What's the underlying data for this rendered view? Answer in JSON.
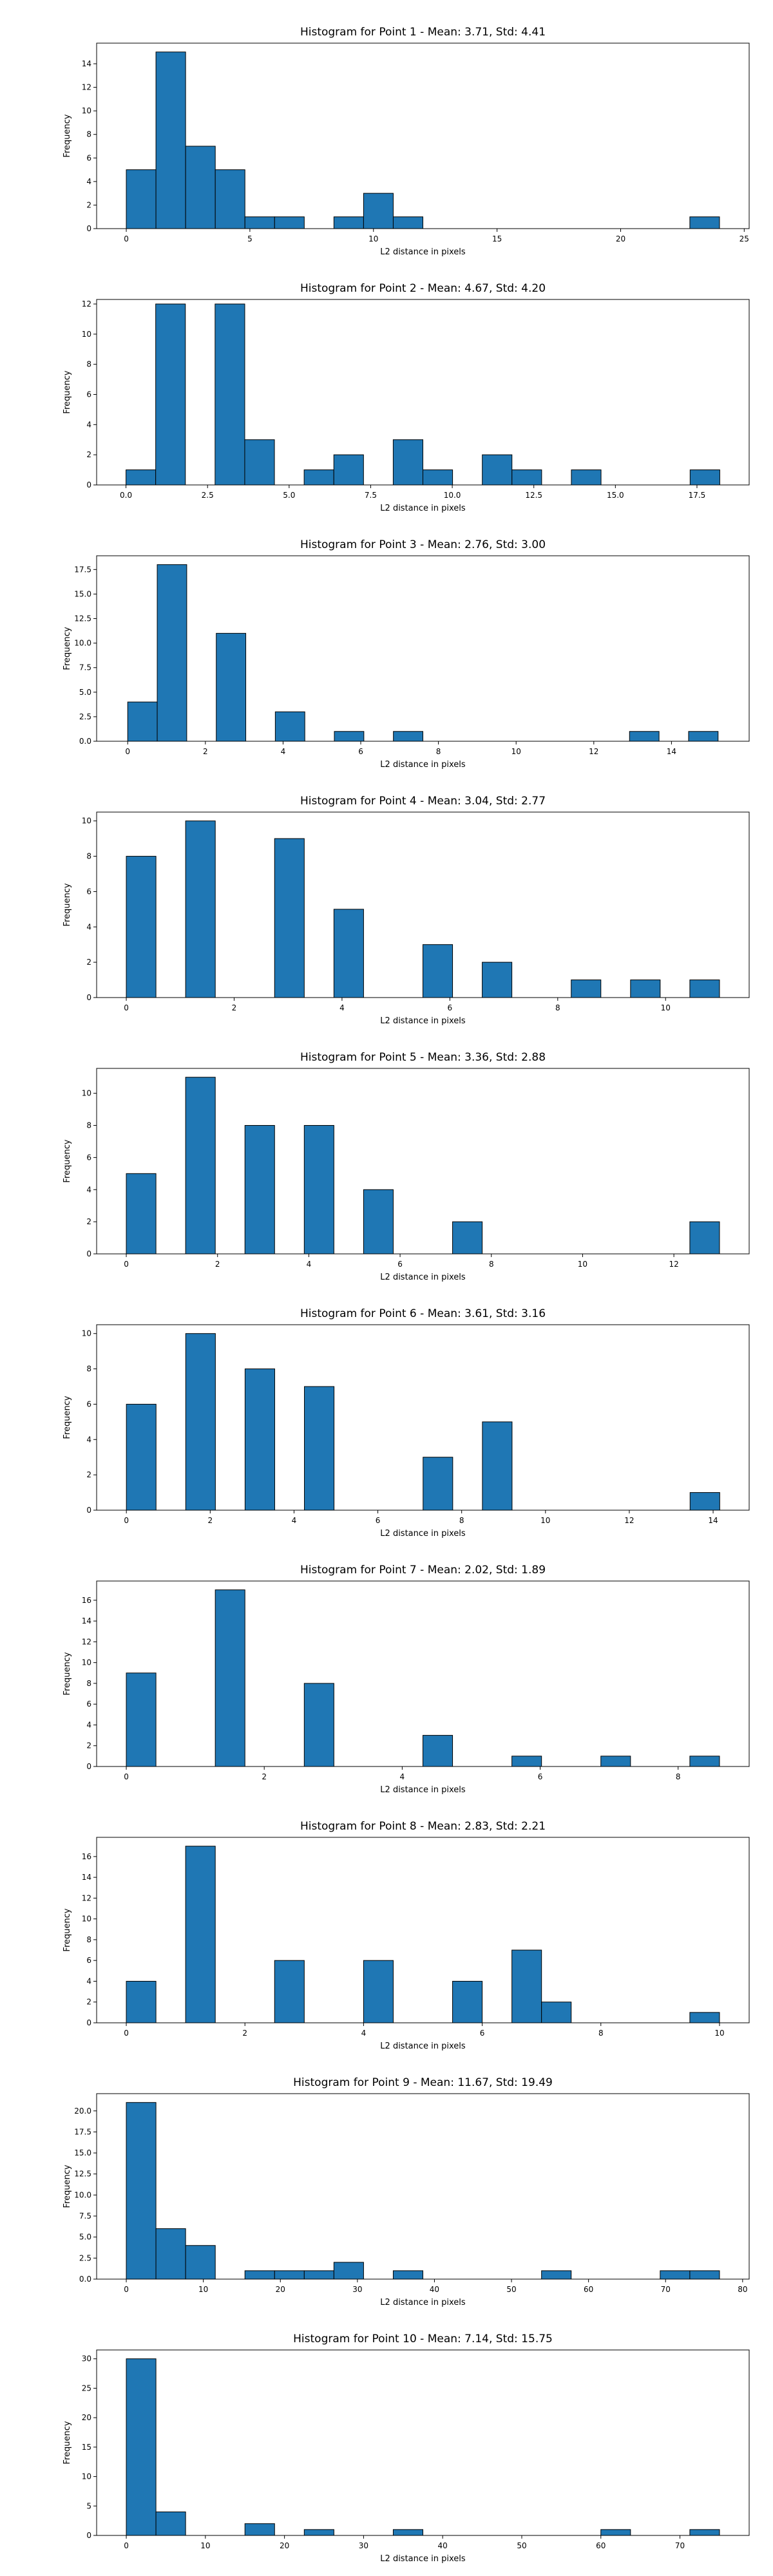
{
  "chart_data": [
    {
      "type": "bar",
      "title": "Histogram for Point 1 - Mean: 3.71, Std: 4.41",
      "xlabel": "L2 distance in pixels",
      "ylabel": "Frequency",
      "xlim": [
        -1.2,
        25.2
      ],
      "ylim": [
        0,
        15.75
      ],
      "xticks": [
        0,
        5,
        10,
        15,
        20,
        25
      ],
      "yticks": [
        0,
        2,
        4,
        6,
        8,
        10,
        12,
        14
      ],
      "bins": {
        "left": [
          0,
          1.2,
          2.4,
          3.6,
          4.8,
          6.0,
          7.2,
          8.4,
          9.6,
          10.8,
          12.0,
          13.2,
          14.4,
          15.6,
          16.8,
          18.0,
          19.2,
          20.4,
          21.6,
          22.8
        ],
        "width": 1.2,
        "counts": [
          5,
          15,
          7,
          5,
          1,
          1,
          0,
          1,
          3,
          1,
          0,
          0,
          0,
          0,
          0,
          0,
          0,
          0,
          0,
          1
        ]
      }
    },
    {
      "type": "bar",
      "title": "Histogram for Point 2 - Mean: 4.67, Std: 4.20",
      "xlabel": "L2 distance in pixels",
      "ylabel": "Frequency",
      "xlim": [
        -0.9,
        19.1
      ],
      "ylim": [
        0,
        12.3
      ],
      "xticks": [
        0.0,
        2.5,
        5.0,
        7.5,
        10.0,
        12.5,
        15.0,
        17.5
      ],
      "yticks": [
        0,
        2,
        4,
        6,
        8,
        10,
        12
      ],
      "bins": {
        "left": [
          0,
          0.91,
          1.82,
          2.73,
          3.64,
          4.55,
          5.46,
          6.37,
          7.28,
          8.19,
          9.1,
          10.01,
          10.92,
          11.83,
          12.74,
          13.65,
          14.56,
          15.47,
          16.38,
          17.29
        ],
        "width": 0.91,
        "counts": [
          1,
          12,
          0,
          12,
          3,
          0,
          1,
          2,
          0,
          3,
          1,
          0,
          2,
          1,
          0,
          1,
          0,
          0,
          0,
          1
        ]
      }
    },
    {
      "type": "bar",
      "title": "Histogram for Point 3 - Mean: 2.76, Std: 3.00",
      "xlabel": "L2 distance in pixels",
      "ylabel": "Frequency",
      "xlim": [
        -0.8,
        16.0
      ],
      "ylim": [
        0,
        18.9
      ],
      "xticks": [
        0,
        2,
        4,
        6,
        8,
        10,
        12,
        14
      ],
      "yticks": [
        0.0,
        2.5,
        5.0,
        7.5,
        10.0,
        12.5,
        15.0,
        17.5
      ],
      "bins": {
        "left": [
          0,
          0.76,
          1.52,
          2.28,
          3.04,
          3.8,
          4.56,
          5.32,
          6.08,
          6.84,
          7.6,
          8.36,
          9.12,
          9.88,
          10.64,
          11.4,
          12.16,
          12.92,
          13.68,
          14.44
        ],
        "width": 0.76,
        "counts": [
          4,
          18,
          0,
          11,
          0,
          3,
          0,
          1,
          0,
          1,
          0,
          0,
          0,
          0,
          0,
          0,
          0,
          1,
          0,
          1
        ]
      }
    },
    {
      "type": "bar",
      "title": "Histogram for Point 4 - Mean: 3.04, Std: 2.77",
      "xlabel": "L2 distance in pixels",
      "ylabel": "Frequency",
      "xlim": [
        -0.55,
        11.55
      ],
      "ylim": [
        0,
        10.5
      ],
      "xticks": [
        0,
        2,
        4,
        6,
        8,
        10
      ],
      "yticks": [
        0,
        2,
        4,
        6,
        8,
        10
      ],
      "bins": {
        "left": [
          0,
          0.55,
          1.1,
          1.65,
          2.2,
          2.75,
          3.3,
          3.85,
          4.4,
          4.95,
          5.5,
          6.05,
          6.6,
          7.15,
          7.7,
          8.25,
          8.8,
          9.35,
          9.9,
          10.45
        ],
        "width": 0.55,
        "counts": [
          8,
          0,
          10,
          0,
          0,
          9,
          0,
          5,
          0,
          0,
          3,
          0,
          2,
          0,
          0,
          1,
          0,
          1,
          0,
          1
        ]
      }
    },
    {
      "type": "bar",
      "title": "Histogram for Point 5 - Mean: 3.36, Std: 2.88",
      "xlabel": "L2 distance in pixels",
      "ylabel": "Frequency",
      "xlim": [
        -0.65,
        13.65
      ],
      "ylim": [
        0,
        11.55
      ],
      "xticks": [
        0,
        2,
        4,
        6,
        8,
        10,
        12
      ],
      "yticks": [
        0,
        2,
        4,
        6,
        8,
        10
      ],
      "bins": {
        "left": [
          0,
          0.65,
          1.3,
          1.95,
          2.6,
          3.25,
          3.9,
          4.55,
          5.2,
          5.85,
          6.5,
          7.15,
          7.8,
          8.45,
          9.1,
          9.75,
          10.4,
          11.05,
          11.7,
          12.35
        ],
        "width": 0.65,
        "counts": [
          5,
          0,
          11,
          0,
          8,
          0,
          8,
          0,
          4,
          0,
          0,
          2,
          0,
          0,
          0,
          0,
          0,
          0,
          0,
          2
        ]
      }
    },
    {
      "type": "bar",
      "title": "Histogram for Point 6 - Mean: 3.61, Std: 3.16",
      "xlabel": "L2 distance in pixels",
      "ylabel": "Frequency",
      "xlim": [
        -0.71,
        14.86
      ],
      "ylim": [
        0,
        10.5
      ],
      "xticks": [
        0,
        2,
        4,
        6,
        8,
        10,
        12,
        14
      ],
      "yticks": [
        0,
        2,
        4,
        6,
        8,
        10
      ],
      "bins": {
        "left": [
          0,
          0.7079,
          1.4158,
          2.1237,
          2.8316,
          3.5395,
          4.2474,
          4.9553,
          5.6632,
          6.3711,
          7.079,
          7.7869,
          8.4948,
          9.2027,
          9.9106,
          10.6185,
          11.3264,
          12.0343,
          12.7422,
          13.4501
        ],
        "width": 0.7079,
        "counts": [
          6,
          0,
          10,
          0,
          8,
          0,
          7,
          0,
          0,
          0,
          3,
          0,
          5,
          0,
          0,
          0,
          0,
          0,
          0,
          1
        ]
      }
    },
    {
      "type": "bar",
      "title": "Histogram for Point 7 - Mean: 2.02, Std: 1.89",
      "xlabel": "L2 distance in pixels",
      "ylabel": "Frequency",
      "xlim": [
        -0.43,
        9.03
      ],
      "ylim": [
        0,
        17.85
      ],
      "xticks": [
        0,
        2,
        4,
        6,
        8
      ],
      "yticks": [
        0,
        2,
        4,
        6,
        8,
        10,
        12,
        14,
        16
      ],
      "bins": {
        "left": [
          0,
          0.43,
          0.86,
          1.29,
          1.72,
          2.15,
          2.58,
          3.01,
          3.44,
          3.87,
          4.3,
          4.73,
          5.16,
          5.59,
          6.02,
          6.45,
          6.88,
          7.31,
          7.74,
          8.17
        ],
        "width": 0.43,
        "counts": [
          9,
          0,
          0,
          17,
          0,
          0,
          8,
          0,
          0,
          0,
          3,
          0,
          0,
          1,
          0,
          0,
          1,
          0,
          0,
          1
        ]
      }
    },
    {
      "type": "bar",
      "title": "Histogram for Point 8 - Mean: 2.83, Std: 2.21",
      "xlabel": "L2 distance in pixels",
      "ylabel": "Frequency",
      "xlim": [
        -0.5,
        10.5
      ],
      "ylim": [
        0,
        17.85
      ],
      "xticks": [
        0,
        2,
        4,
        6,
        8,
        10
      ],
      "yticks": [
        0,
        2,
        4,
        6,
        8,
        10,
        12,
        14,
        16
      ],
      "bins": {
        "left": [
          0,
          0.5,
          1.0,
          1.5,
          2.0,
          2.5,
          3.0,
          3.5,
          4.0,
          4.5,
          5.0,
          5.5,
          6.0,
          6.5,
          7.0,
          7.5,
          8.0,
          8.5,
          9.0,
          9.5
        ],
        "width": 0.5,
        "counts": [
          4,
          0,
          17,
          0,
          0,
          6,
          0,
          0,
          6,
          0,
          0,
          4,
          0,
          7,
          2,
          0,
          0,
          0,
          0,
          1
        ]
      }
    },
    {
      "type": "bar",
      "title": "Histogram for Point 9 - Mean: 11.67, Std: 19.49",
      "xlabel": "L2 distance in pixels",
      "ylabel": "Frequency",
      "xlim": [
        -3.85,
        80.85
      ],
      "ylim": [
        0,
        22.05
      ],
      "xticks": [
        0,
        10,
        20,
        30,
        40,
        50,
        60,
        70,
        80
      ],
      "yticks": [
        0.0,
        2.5,
        5.0,
        7.5,
        10.0,
        12.5,
        15.0,
        17.5,
        20.0
      ],
      "bins": {
        "left": [
          0,
          3.85,
          7.7,
          11.55,
          15.4,
          19.25,
          23.1,
          26.95,
          30.8,
          34.65,
          38.5,
          42.35,
          46.2,
          50.05,
          53.9,
          57.75,
          61.6,
          65.45,
          69.3,
          73.15
        ],
        "width": 3.85,
        "counts": [
          21,
          6,
          4,
          0,
          1,
          1,
          1,
          2,
          0,
          1,
          0,
          0,
          0,
          0,
          1,
          0,
          0,
          0,
          1,
          1
        ]
      }
    },
    {
      "type": "bar",
      "title": "Histogram for Point 10 - Mean: 7.14, Std: 15.75",
      "xlabel": "L2 distance in pixels",
      "ylabel": "Frequency",
      "xlim": [
        -3.75,
        78.75
      ],
      "ylim": [
        0,
        31.5
      ],
      "xticks": [
        0,
        10,
        20,
        30,
        40,
        50,
        60,
        70
      ],
      "yticks": [
        0,
        5,
        10,
        15,
        20,
        25,
        30
      ],
      "bins": {
        "left": [
          0,
          3.75,
          7.5,
          11.25,
          15.0,
          18.75,
          22.5,
          26.25,
          30.0,
          33.75,
          37.5,
          41.25,
          45.0,
          48.75,
          52.5,
          56.25,
          60.0,
          63.75,
          67.5,
          71.25
        ],
        "width": 3.75,
        "counts": [
          30,
          4,
          0,
          0,
          2,
          0,
          1,
          0,
          0,
          1,
          0,
          0,
          0,
          0,
          0,
          0,
          1,
          0,
          0,
          1
        ]
      }
    }
  ]
}
